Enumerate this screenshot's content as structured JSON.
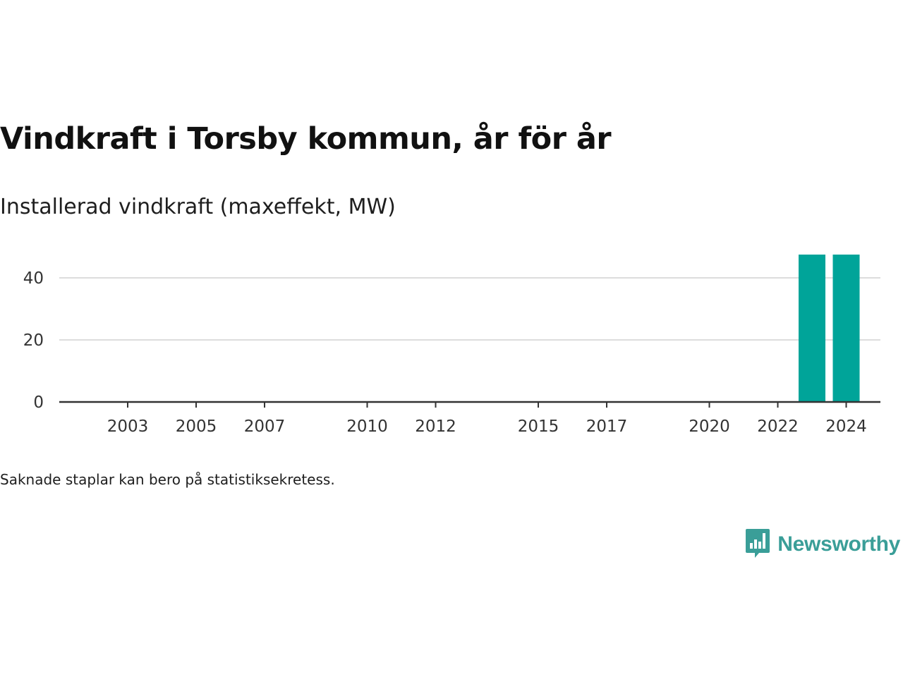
{
  "header": {
    "title": "Vindkraft i Torsby kommun, år för år",
    "subtitle": "Installerad vindkraft (maxeffekt, MW)"
  },
  "footnote": "Saknade staplar kan bero på statistiksekretess.",
  "brand": {
    "name": "Newsworthy",
    "icon": "bar-chart-speech-bubble-icon",
    "color": "#3a9e98"
  },
  "chart_data": {
    "type": "bar",
    "categories": [
      "2023",
      "2024"
    ],
    "values": [
      47.5,
      47.5
    ],
    "xlabel": "",
    "ylabel": "",
    "xlim": [
      2001,
      2025
    ],
    "ylim": [
      0,
      50
    ],
    "yticks": [
      "0",
      "20",
      "40"
    ],
    "xticks": [
      "2003",
      "2005",
      "2007",
      "2010",
      "2012",
      "2015",
      "2017",
      "2020",
      "2022",
      "2024"
    ],
    "grid": true,
    "legend": "none",
    "bar_color": "#00a499"
  }
}
